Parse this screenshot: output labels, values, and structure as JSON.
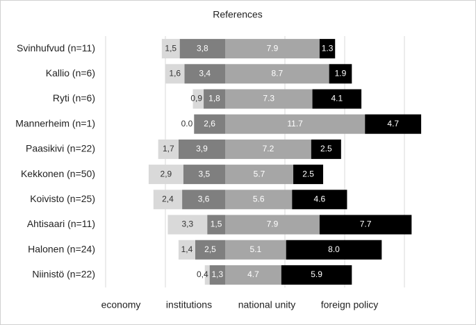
{
  "chart_data": {
    "type": "diverging-bar",
    "title": "References",
    "categories": [
      "Svinhufvud (n=11)",
      "Kallio (n=6)",
      "Ryti (n=6)",
      "Mannerheim (n=1)",
      "Paasikivi (n=22)",
      "Kekkonen (n=50)",
      "Koivisto (n=25)",
      "Ahtisaari (n=11)",
      "Halonen (n=24)",
      "Niinistö (n=22)"
    ],
    "series": [
      {
        "name": "economy",
        "color": "#d9d9d9",
        "direction": "left",
        "values": [
          1.5,
          1.6,
          0.9,
          0.0,
          1.7,
          2.9,
          2.4,
          3.3,
          1.4,
          0.4
        ],
        "value_labels": [
          "1,5",
          "1,6",
          "0,9",
          "0.0",
          "1,7",
          "2,9",
          "2,4",
          "3,3",
          "1,4",
          "0,4"
        ]
      },
      {
        "name": "institutions",
        "color": "#7f7f7f",
        "direction": "left",
        "values": [
          3.8,
          3.4,
          1.8,
          2.6,
          3.9,
          3.5,
          3.6,
          1.5,
          2.5,
          1.3
        ],
        "value_labels": [
          "3,8",
          "3,4",
          "1,8",
          "2,6",
          "3,9",
          "3,5",
          "3,6",
          "1,5",
          "2,5",
          "1,3"
        ]
      },
      {
        "name": "national unity",
        "color": "#a6a6a6",
        "direction": "right",
        "values": [
          7.9,
          8.7,
          7.3,
          11.7,
          7.2,
          5.7,
          5.6,
          7.9,
          5.1,
          4.7
        ],
        "value_labels": [
          "7.9",
          "8.7",
          "7.3",
          "11.7",
          "7.2",
          "5.7",
          "5.6",
          "7.9",
          "5.1",
          "4.7"
        ]
      },
      {
        "name": "foreign policy",
        "color": "#000000",
        "direction": "right",
        "values": [
          1.3,
          1.9,
          4.1,
          4.7,
          2.5,
          2.5,
          4.6,
          7.7,
          8.0,
          5.9
        ],
        "value_labels": [
          "1.3",
          "1.9",
          "4.1",
          "4.7",
          "2.5",
          "2.5",
          "4.6",
          "7.7",
          "8.0",
          "5.9"
        ]
      }
    ],
    "xlim": [
      -10,
      20
    ],
    "xgrid": [
      -10,
      -5,
      5,
      10,
      15
    ]
  }
}
